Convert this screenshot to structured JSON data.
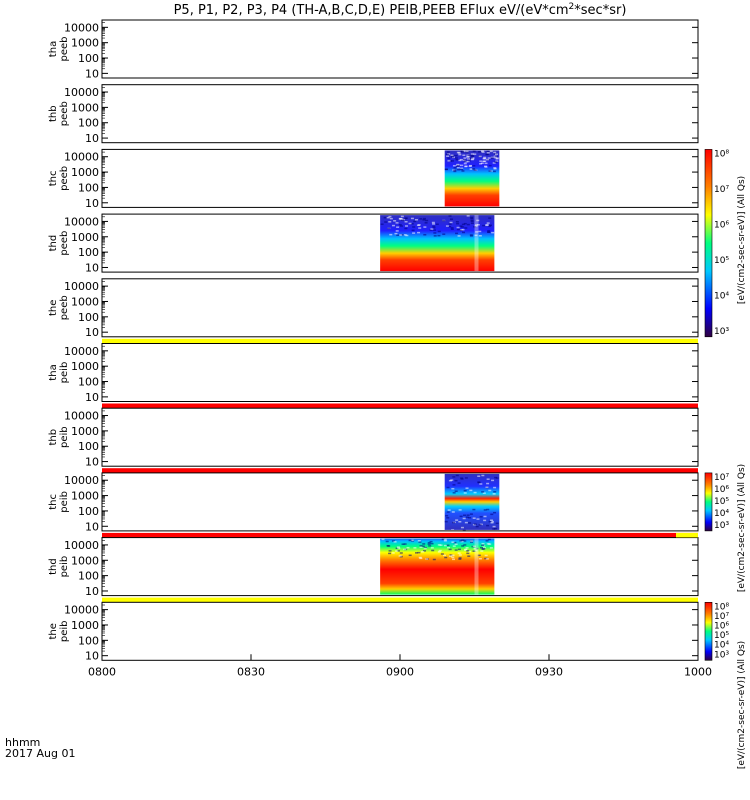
{
  "chart_data": {
    "type": "heatmap",
    "title": "P5, P1, P2, P3, P4 (TH-A,B,C,D,E) PEIB,PEEB EFlux eV/(eV*cm",
    "title_sup": "2",
    "title_end": "*sec*sr)",
    "x_axis": {
      "ticks": [
        "0800",
        "0830",
        "0900",
        "0930",
        "1000"
      ],
      "range": [
        "08:00",
        "10:00"
      ],
      "unit_label": "hhmm",
      "date_label": "2017 Aug 01"
    },
    "y_axis": {
      "scale": "log",
      "range": [
        5,
        30000
      ],
      "ticks": [
        "10",
        "100",
        "1000",
        "10000"
      ]
    },
    "colorbar_labels": [
      "[eV/(cm2-sec-sr-eV)] (All Qs)",
      "[eV/(cm2-sec-sr-eV)] (All Qs)",
      "[eV/(cm2-sec-sr-eV)] (All Qs)"
    ],
    "colorbar_ticks": [
      [
        "10⁸",
        "10⁷",
        "10⁶",
        "10⁵",
        "10⁴",
        "10³"
      ],
      [
        "10⁷",
        "10⁶",
        "10⁵",
        "10⁴",
        "10³"
      ],
      [
        "10⁸",
        "10⁷",
        "10⁶",
        "10⁵",
        "10⁴",
        "10³"
      ]
    ],
    "panels": [
      {
        "label": [
          "tha",
          "peeb"
        ],
        "data": null,
        "bar": null
      },
      {
        "label": [
          "thb",
          "peeb"
        ],
        "data": null,
        "bar": null
      },
      {
        "label": [
          "thc",
          "peeb"
        ],
        "data": {
          "t_start": "09:09",
          "t_end": "09:20"
        },
        "bar": null
      },
      {
        "label": [
          "thd",
          "peeb"
        ],
        "data": {
          "t_start": "08:56",
          "t_end": "09:19"
        },
        "bar": null
      },
      {
        "label": [
          "the",
          "peeb"
        ],
        "data": null,
        "bar": "#ffff00"
      },
      {
        "label": [
          "tha",
          "peib"
        ],
        "data": null,
        "bar": "#ff0000"
      },
      {
        "label": [
          "thb",
          "peib"
        ],
        "data": null,
        "bar": "#ff0000"
      },
      {
        "label": [
          "thc",
          "peib"
        ],
        "data": {
          "t_start": "09:09",
          "t_end": "09:20"
        },
        "bar": "#ff0000"
      },
      {
        "label": [
          "thd",
          "peib"
        ],
        "data": {
          "t_start": "08:56",
          "t_end": "09:19"
        },
        "bar": "#ffff00"
      },
      {
        "label": [
          "the",
          "peib"
        ],
        "data": null,
        "bar": null
      }
    ]
  }
}
